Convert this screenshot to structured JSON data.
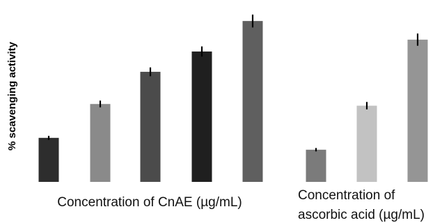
{
  "chart_data": [
    {
      "type": "bar",
      "ylabel": "% scavenging activity",
      "xlabel": "Concentration of CnAE (µg/mL)",
      "ylim": [
        0,
        100
      ],
      "grid": false,
      "values": [
        26,
        46,
        65,
        77,
        95
      ],
      "errors": [
        1.2,
        2.0,
        2.6,
        3.0,
        3.8
      ],
      "colors": [
        "#2d2d2d",
        "#8a8a8a",
        "#4b4b4b",
        "#1f1f1f",
        "#5f5f5f"
      ]
    },
    {
      "type": "bar",
      "xlabel_lines": [
        "Concentration of",
        "ascorbic acid (µg/mL)"
      ],
      "ylim": [
        0,
        100
      ],
      "grid": false,
      "values": [
        19,
        45,
        84
      ],
      "errors": [
        1.0,
        2.2,
        3.6
      ],
      "colors": [
        "#7b7b7b",
        "#c2c2c2",
        "#959595"
      ]
    }
  ]
}
